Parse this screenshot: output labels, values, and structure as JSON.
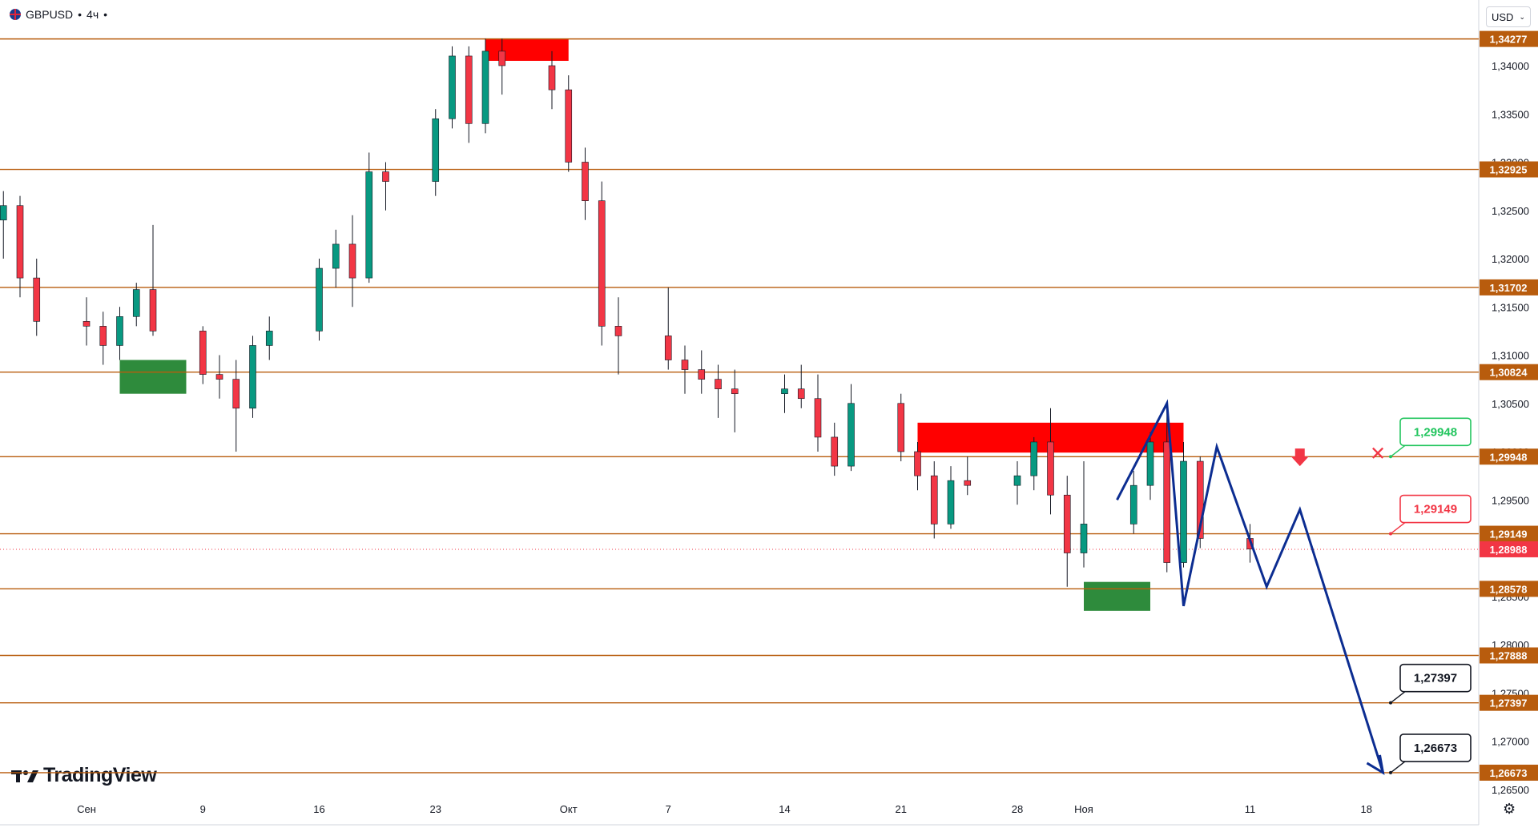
{
  "header": {
    "symbol": "GBPUSD",
    "separator": "•",
    "interval": "4ч",
    "dot": "•"
  },
  "currency_button": {
    "label": "USD",
    "chevron_icon": "chevron-down-icon"
  },
  "brand": {
    "name": "TradingView",
    "logo_icon": "tradingview-logo-icon"
  },
  "settings_icon": "gear-icon",
  "colors": {
    "level_line": "#b85c0d",
    "level_label_bg": "#b85c0d",
    "bull": "#089981",
    "bear": "#f23645",
    "candle": "#131722",
    "supply_zone": "#ff0000",
    "demand_zone": "#2e8b3c",
    "forecast": "#0c2d91",
    "current_price": "#f23645"
  },
  "chart_data": {
    "type": "candlestick",
    "symbol": "GBPUSD",
    "timeframe": "4ч",
    "xlabel": "",
    "ylabel": "",
    "ylim": [
      1.2645,
      1.3455
    ],
    "grid": false,
    "price_ticks": [
      "1,34000",
      "1,33500",
      "1,33000",
      "1,32500",
      "1,32000",
      "1,31500",
      "1,31000",
      "1,30500",
      "1,30000",
      "1,29500",
      "1,29000",
      "1,28500",
      "1,28000",
      "1,27500",
      "1,27000",
      "1,26500"
    ],
    "time_ticks": [
      "Сен",
      "9",
      "16",
      "23",
      "Окт",
      "7",
      "14",
      "21",
      "28",
      "Ноя",
      "11",
      "18"
    ],
    "levels": [
      {
        "label": "1,34277",
        "value": 1.34277
      },
      {
        "label": "1,32925",
        "value": 1.32925
      },
      {
        "label": "1,31702",
        "value": 1.31702
      },
      {
        "label": "1,30824",
        "value": 1.30824
      },
      {
        "label": "1,29948",
        "value": 1.29948
      },
      {
        "label": "1,29149",
        "value": 1.29149
      },
      {
        "label": "1,28578",
        "value": 1.28578
      },
      {
        "label": "1,27888",
        "value": 1.27888
      },
      {
        "label": "1,27397",
        "value": 1.27397
      },
      {
        "label": "1,26673",
        "value": 1.26673
      }
    ],
    "current_price": {
      "label": "1,28988",
      "value": 1.28988
    },
    "callouts": [
      {
        "label": "1,29948",
        "value": 1.29948,
        "style": "green",
        "status": "invalidated"
      },
      {
        "label": "1,29149",
        "value": 1.29149,
        "style": "red"
      },
      {
        "label": "1,27397",
        "value": 1.27397,
        "style": "black"
      },
      {
        "label": "1,26673",
        "value": 1.26673,
        "style": "black"
      }
    ],
    "zones": [
      {
        "kind": "supply",
        "date_from": "2024-09-26",
        "date_to": "2024-10-01",
        "low": 1.3405,
        "high": 1.34277
      },
      {
        "kind": "demand",
        "date_from": "2024-09-04",
        "date_to": "2024-09-08",
        "low": 1.306,
        "high": 1.3095
      },
      {
        "kind": "supply",
        "date_from": "2024-10-22",
        "date_to": "2024-11-07",
        "low": 1.2999,
        "high": 1.303
      },
      {
        "kind": "demand",
        "date_from": "2024-11-01",
        "date_to": "2024-11-05",
        "low": 1.2835,
        "high": 1.2865
      }
    ],
    "candles": [
      {
        "date": "2024-08-28",
        "open": 1.324,
        "high": 1.327,
        "low": 1.32,
        "close": 1.3255
      },
      {
        "date": "2024-08-29",
        "open": 1.3255,
        "high": 1.3265,
        "low": 1.316,
        "close": 1.318
      },
      {
        "date": "2024-08-30",
        "open": 1.318,
        "high": 1.32,
        "low": 1.312,
        "close": 1.3135
      },
      {
        "date": "2024-09-02",
        "open": 1.3135,
        "high": 1.316,
        "low": 1.311,
        "close": 1.313
      },
      {
        "date": "2024-09-03",
        "open": 1.313,
        "high": 1.3145,
        "low": 1.309,
        "close": 1.311
      },
      {
        "date": "2024-09-04",
        "open": 1.311,
        "high": 1.315,
        "low": 1.3095,
        "close": 1.314
      },
      {
        "date": "2024-09-05",
        "open": 1.314,
        "high": 1.3175,
        "low": 1.313,
        "close": 1.3168
      },
      {
        "date": "2024-09-06",
        "open": 1.3168,
        "high": 1.3235,
        "low": 1.312,
        "close": 1.3125
      },
      {
        "date": "2024-09-09",
        "open": 1.3125,
        "high": 1.313,
        "low": 1.307,
        "close": 1.308
      },
      {
        "date": "2024-09-10",
        "open": 1.308,
        "high": 1.31,
        "low": 1.3055,
        "close": 1.3075
      },
      {
        "date": "2024-09-11",
        "open": 1.3075,
        "high": 1.3095,
        "low": 1.3,
        "close": 1.3045
      },
      {
        "date": "2024-09-12",
        "open": 1.3045,
        "high": 1.312,
        "low": 1.3035,
        "close": 1.311
      },
      {
        "date": "2024-09-13",
        "open": 1.311,
        "high": 1.314,
        "low": 1.3095,
        "close": 1.3125
      },
      {
        "date": "2024-09-16",
        "open": 1.3125,
        "high": 1.32,
        "low": 1.3115,
        "close": 1.319
      },
      {
        "date": "2024-09-17",
        "open": 1.319,
        "high": 1.323,
        "low": 1.317,
        "close": 1.3215
      },
      {
        "date": "2024-09-18",
        "open": 1.3215,
        "high": 1.3245,
        "low": 1.315,
        "close": 1.318
      },
      {
        "date": "2024-09-19",
        "open": 1.318,
        "high": 1.331,
        "low": 1.3175,
        "close": 1.329
      },
      {
        "date": "2024-09-20",
        "open": 1.329,
        "high": 1.33,
        "low": 1.325,
        "close": 1.328
      },
      {
        "date": "2024-09-23",
        "open": 1.328,
        "high": 1.3355,
        "low": 1.3265,
        "close": 1.3345
      },
      {
        "date": "2024-09-24",
        "open": 1.3345,
        "high": 1.342,
        "low": 1.3335,
        "close": 1.341
      },
      {
        "date": "2024-09-25",
        "open": 1.341,
        "high": 1.342,
        "low": 1.332,
        "close": 1.334
      },
      {
        "date": "2024-09-26",
        "open": 1.334,
        "high": 1.3428,
        "low": 1.333,
        "close": 1.3415
      },
      {
        "date": "2024-09-27",
        "open": 1.3415,
        "high": 1.3428,
        "low": 1.337,
        "close": 1.34
      },
      {
        "date": "2024-09-30",
        "open": 1.34,
        "high": 1.3415,
        "low": 1.3355,
        "close": 1.3375
      },
      {
        "date": "2024-10-01",
        "open": 1.3375,
        "high": 1.339,
        "low": 1.329,
        "close": 1.33
      },
      {
        "date": "2024-10-02",
        "open": 1.33,
        "high": 1.3315,
        "low": 1.324,
        "close": 1.326
      },
      {
        "date": "2024-10-03",
        "open": 1.326,
        "high": 1.328,
        "low": 1.311,
        "close": 1.313
      },
      {
        "date": "2024-10-04",
        "open": 1.313,
        "high": 1.316,
        "low": 1.308,
        "close": 1.312
      },
      {
        "date": "2024-10-07",
        "open": 1.312,
        "high": 1.317,
        "low": 1.3085,
        "close": 1.3095
      },
      {
        "date": "2024-10-08",
        "open": 1.3095,
        "high": 1.311,
        "low": 1.306,
        "close": 1.3085
      },
      {
        "date": "2024-10-09",
        "open": 1.3085,
        "high": 1.3105,
        "low": 1.306,
        "close": 1.3075
      },
      {
        "date": "2024-10-10",
        "open": 1.3075,
        "high": 1.309,
        "low": 1.3035,
        "close": 1.3065
      },
      {
        "date": "2024-10-11",
        "open": 1.3065,
        "high": 1.3085,
        "low": 1.302,
        "close": 1.306
      },
      {
        "date": "2024-10-14",
        "open": 1.306,
        "high": 1.308,
        "low": 1.304,
        "close": 1.3065
      },
      {
        "date": "2024-10-15",
        "open": 1.3065,
        "high": 1.309,
        "low": 1.3045,
        "close": 1.3055
      },
      {
        "date": "2024-10-16",
        "open": 1.3055,
        "high": 1.308,
        "low": 1.3,
        "close": 1.3015
      },
      {
        "date": "2024-10-17",
        "open": 1.3015,
        "high": 1.303,
        "low": 1.2975,
        "close": 1.2985
      },
      {
        "date": "2024-10-18",
        "open": 1.2985,
        "high": 1.307,
        "low": 1.298,
        "close": 1.305
      },
      {
        "date": "2024-10-21",
        "open": 1.305,
        "high": 1.306,
        "low": 1.299,
        "close": 1.3
      },
      {
        "date": "2024-10-22",
        "open": 1.3,
        "high": 1.301,
        "low": 1.296,
        "close": 1.2975
      },
      {
        "date": "2024-10-23",
        "open": 1.2975,
        "high": 1.299,
        "low": 1.291,
        "close": 1.2925
      },
      {
        "date": "2024-10-24",
        "open": 1.2925,
        "high": 1.2985,
        "low": 1.292,
        "close": 1.297
      },
      {
        "date": "2024-10-25",
        "open": 1.297,
        "high": 1.2995,
        "low": 1.2955,
        "close": 1.2965
      },
      {
        "date": "2024-10-28",
        "open": 1.2965,
        "high": 1.299,
        "low": 1.2945,
        "close": 1.2975
      },
      {
        "date": "2024-10-29",
        "open": 1.2975,
        "high": 1.3015,
        "low": 1.296,
        "close": 1.301
      },
      {
        "date": "2024-10-30",
        "open": 1.301,
        "high": 1.3045,
        "low": 1.2935,
        "close": 1.2955
      },
      {
        "date": "2024-10-31",
        "open": 1.2955,
        "high": 1.2975,
        "low": 1.286,
        "close": 1.2895
      },
      {
        "date": "2024-11-01",
        "open": 1.2895,
        "high": 1.299,
        "low": 1.288,
        "close": 1.2925
      },
      {
        "date": "2024-11-04",
        "open": 1.2925,
        "high": 1.298,
        "low": 1.2915,
        "close": 1.2965
      },
      {
        "date": "2024-11-05",
        "open": 1.2965,
        "high": 1.302,
        "low": 1.295,
        "close": 1.301
      },
      {
        "date": "2024-11-06",
        "open": 1.301,
        "high": 1.3045,
        "low": 1.2875,
        "close": 1.2885
      },
      {
        "date": "2024-11-07",
        "open": 1.2885,
        "high": 1.301,
        "low": 1.288,
        "close": 1.299
      },
      {
        "date": "2024-11-08",
        "open": 1.299,
        "high": 1.2995,
        "low": 1.29,
        "close": 1.291
      },
      {
        "date": "2024-11-11",
        "open": 1.291,
        "high": 1.2925,
        "low": 1.2885,
        "close": 1.2899
      }
    ],
    "forecast_path": [
      {
        "date": "2024-11-03",
        "price": 1.295
      },
      {
        "date": "2024-11-06",
        "price": 1.305
      },
      {
        "date": "2024-11-07",
        "price": 1.284
      },
      {
        "date": "2024-11-09",
        "price": 1.3005
      },
      {
        "date": "2024-11-12",
        "price": 1.286
      },
      {
        "date": "2024-11-14",
        "price": 1.294
      },
      {
        "date": "2024-11-19",
        "price": 1.26673
      }
    ]
  }
}
